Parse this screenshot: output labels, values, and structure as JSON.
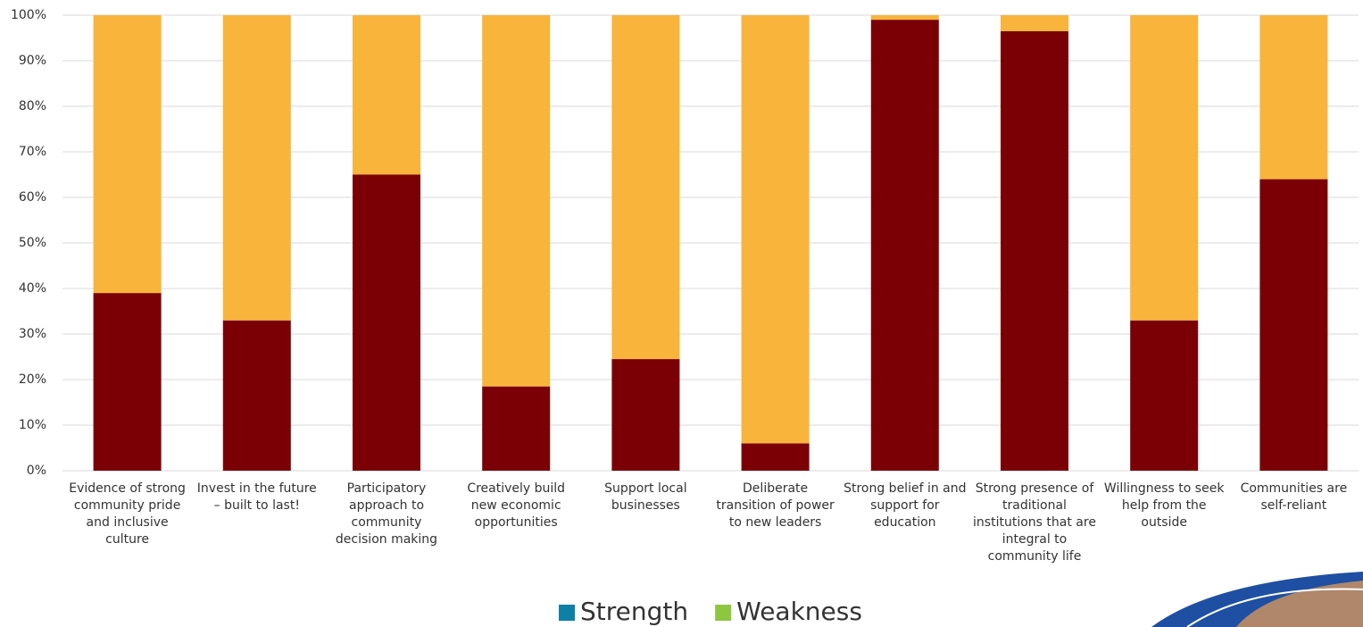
{
  "chart_data": {
    "type": "stacked_bar",
    "categories": [
      "Evidence of strong community pride and inclusive culture",
      "Invest in the future – built to last!",
      "Participatory approach to community decision making",
      "Creatively build new economic opportunities",
      "Support local businesses",
      "Deliberate transition of power to new leaders",
      "Strong belief in and support for education",
      "Strong presence of traditional institutions that are integral to community life",
      "Willingness to seek help from the outside",
      "Communities are self-reliant"
    ],
    "series": [
      {
        "name": "Strength",
        "color": "#7b0006",
        "legend_color": "#0e7fa6",
        "values": [
          39,
          33,
          65,
          18.5,
          24.5,
          6,
          99,
          96.5,
          33,
          64
        ]
      },
      {
        "name": "Weakness",
        "color": "#f9b43c",
        "legend_color": "#8dc63f",
        "values": [
          61,
          67,
          35,
          81.5,
          75.5,
          94,
          1,
          3.5,
          67,
          36
        ]
      }
    ],
    "ylim": [
      0,
      100
    ],
    "yticks": [
      {
        "value": 0,
        "label": "0%"
      },
      {
        "value": 10,
        "label": "10%"
      },
      {
        "value": 20,
        "label": "20%"
      },
      {
        "value": 30,
        "label": "30%"
      },
      {
        "value": 40,
        "label": "40%"
      },
      {
        "value": 50,
        "label": "50%"
      },
      {
        "value": 60,
        "label": "60%"
      },
      {
        "value": 70,
        "label": "70%"
      },
      {
        "value": 80,
        "label": "80%"
      },
      {
        "value": 90,
        "label": "90%"
      },
      {
        "value": 100,
        "label": "100%"
      }
    ],
    "grid": true,
    "legend": "bottom"
  }
}
